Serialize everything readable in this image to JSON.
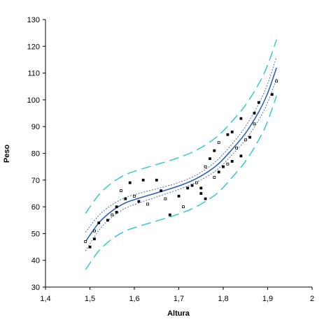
{
  "chart_data": {
    "type": "scatter",
    "xlabel": "Altura",
    "ylabel": "Peso",
    "xlim": [
      1.4,
      2.0
    ],
    "ylim": [
      30,
      130
    ],
    "x_ticks": [
      "1,4",
      "1,5",
      "1,6",
      "1,7",
      "1,8",
      "1,9",
      "2"
    ],
    "y_ticks": [
      "30",
      "40",
      "50",
      "60",
      "70",
      "80",
      "90",
      "100",
      "110",
      "120",
      "130"
    ],
    "grid": false,
    "legend": "none",
    "colors": {
      "fit": "#2f5fbf",
      "confidence": "#4a6bdc",
      "prediction": "#33cccc",
      "points": "#000000"
    },
    "series": [
      {
        "role": "observed",
        "x": [
          1.49,
          1.5,
          1.51,
          1.51,
          1.52,
          1.54,
          1.55,
          1.56,
          1.56,
          1.57,
          1.58,
          1.59,
          1.6,
          1.61,
          1.62,
          1.63,
          1.65,
          1.66,
          1.67,
          1.68,
          1.7,
          1.71,
          1.72,
          1.73,
          1.74,
          1.75,
          1.75,
          1.76,
          1.76,
          1.77,
          1.78,
          1.78,
          1.79,
          1.79,
          1.8,
          1.81,
          1.81,
          1.82,
          1.82,
          1.83,
          1.84,
          1.84,
          1.85,
          1.86,
          1.87,
          1.87,
          1.88,
          1.91,
          1.92
        ],
        "y": [
          47,
          45,
          48,
          51,
          54,
          55,
          57,
          58,
          60,
          66,
          63,
          69,
          64,
          62,
          70,
          61,
          70,
          66,
          63,
          57,
          64,
          60,
          67,
          68,
          69,
          67,
          65,
          75,
          63,
          78,
          71,
          81,
          73,
          84,
          75,
          87,
          76,
          88,
          77,
          82,
          79,
          93,
          85,
          86,
          95,
          91,
          99,
          102,
          107
        ]
      },
      {
        "role": "fit",
        "x": [
          1.49,
          1.52,
          1.55,
          1.58,
          1.61,
          1.64,
          1.67,
          1.7,
          1.73,
          1.76,
          1.79,
          1.82,
          1.85,
          1.88,
          1.9,
          1.92
        ],
        "y": [
          47,
          54,
          58.5,
          61.5,
          63.2,
          64.7,
          66.2,
          67.8,
          69.8,
          72.5,
          76.2,
          81.5,
          87.5,
          95.5,
          102.5,
          112
        ]
      },
      {
        "role": "confidence-upper",
        "x": [
          1.49,
          1.52,
          1.55,
          1.58,
          1.61,
          1.64,
          1.67,
          1.7,
          1.73,
          1.76,
          1.79,
          1.82,
          1.85,
          1.88,
          1.9,
          1.92
        ],
        "y": [
          50.5,
          56.8,
          60.8,
          63.5,
          65,
          66.3,
          67.6,
          69.1,
          71.1,
          74,
          78,
          83.5,
          90,
          98.5,
          106,
          116
        ]
      },
      {
        "role": "confidence-lower",
        "x": [
          1.49,
          1.52,
          1.55,
          1.58,
          1.61,
          1.64,
          1.67,
          1.7,
          1.73,
          1.76,
          1.79,
          1.82,
          1.85,
          1.88,
          1.9,
          1.92
        ],
        "y": [
          43.5,
          51.2,
          56.2,
          59.5,
          61.4,
          63.1,
          64.8,
          66.5,
          68.5,
          71,
          74.4,
          79.5,
          85,
          92.5,
          99,
          108
        ]
      },
      {
        "role": "prediction-upper",
        "x": [
          1.49,
          1.52,
          1.55,
          1.58,
          1.61,
          1.64,
          1.67,
          1.7,
          1.73,
          1.76,
          1.79,
          1.82,
          1.85,
          1.88,
          1.9,
          1.92
        ],
        "y": [
          57.5,
          64.5,
          69,
          72,
          73.8,
          75.3,
          76.8,
          78.4,
          80.4,
          83.1,
          86.8,
          92,
          98,
          106,
          113,
          122.5
        ]
      },
      {
        "role": "prediction-lower",
        "x": [
          1.49,
          1.52,
          1.55,
          1.58,
          1.61,
          1.64,
          1.67,
          1.7,
          1.73,
          1.76,
          1.79,
          1.82,
          1.85,
          1.88,
          1.9,
          1.92
        ],
        "y": [
          36.5,
          43.5,
          48,
          51,
          52.7,
          54.2,
          55.7,
          57.3,
          59.3,
          62,
          65.6,
          71,
          77,
          85,
          92,
          101.5
        ]
      }
    ]
  }
}
